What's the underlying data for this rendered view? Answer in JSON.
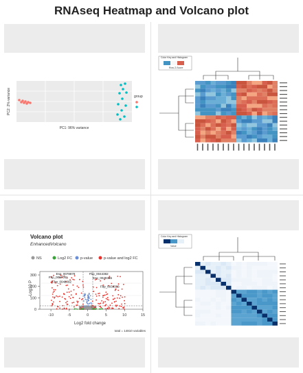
{
  "page": {
    "title": "RNAseq Heatmap and Volcano plot"
  },
  "pca": {
    "xlabel": "PC1: 96% variance",
    "ylabel": "PC2: 2% variance",
    "legend_title": "group",
    "colors": {
      "a": "#f8766d",
      "b": "#00bfc4",
      "bg": "#ebebeb"
    }
  },
  "heatmap1": {
    "legend_title": "Color Key and Histogram",
    "legend_sub": "Row Z-Score",
    "colors": {
      "high": "#d6604d",
      "low": "#4393c3"
    }
  },
  "volcano": {
    "title": "Volcano plot",
    "subtitle": "EnhancedVolcano",
    "legend": [
      "NS",
      "Log2 FC",
      "p-value",
      "p-value and log2 FC"
    ],
    "legend_colors": [
      "#999999",
      "#3aa33a",
      "#6b8fd6",
      "#e8312b"
    ],
    "xlabel": "Log2 fold change",
    "ylabel": "-Log10 P",
    "xticks": [
      "-10",
      "-5",
      "0",
      "5",
      "10",
      "15"
    ],
    "yticks": [
      "0",
      "100",
      "200",
      "300"
    ],
    "caption": "total = 14810 variables",
    "labels": [
      "Esp_0078878",
      "Fbp_0044382",
      "Fbp_0087041",
      "Esp_0049365",
      "Fbp_0048092",
      "Fbp_0038383"
    ]
  },
  "heatmap2": {
    "legend_title": "Color Key and Histogram",
    "legend_sub": "Value",
    "colors": {
      "dark": "#08306b",
      "mid": "#4a98c9",
      "light": "#e6f0f8"
    }
  }
}
